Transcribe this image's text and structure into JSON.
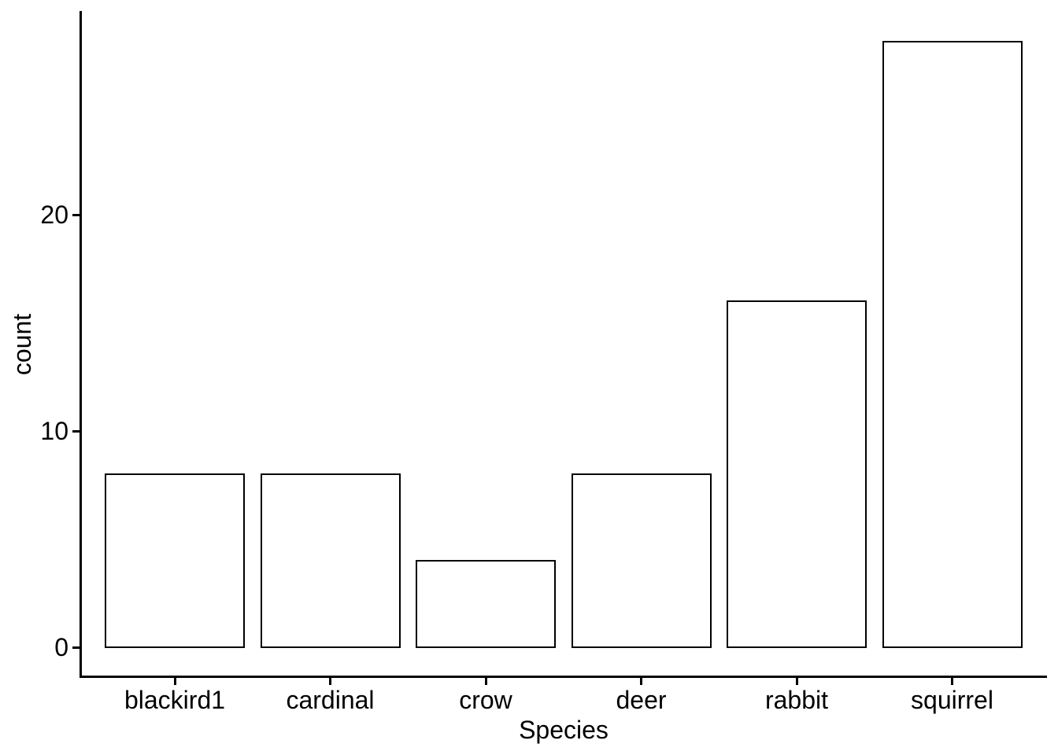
{
  "chart_data": {
    "type": "bar",
    "title": "",
    "xlabel": "Species",
    "ylabel": "count",
    "categories": [
      "blackird1",
      "cardinal",
      "crow",
      "deer",
      "rabbit",
      "squirrel"
    ],
    "values": [
      8,
      8,
      4,
      8,
      16,
      28
    ],
    "ytick_labels": [
      "0",
      "10",
      "20"
    ],
    "ytick_values": [
      0,
      10,
      20
    ],
    "ylim": [
      0,
      29.4
    ],
    "grid": false,
    "legend_position": "none",
    "bar_orientation": "vertical",
    "style": {
      "background": "#ffffff",
      "bar_fill": "#ffffff",
      "bar_stroke": "#000000",
      "axis_color": "#000000",
      "text_color": "#000000"
    }
  }
}
